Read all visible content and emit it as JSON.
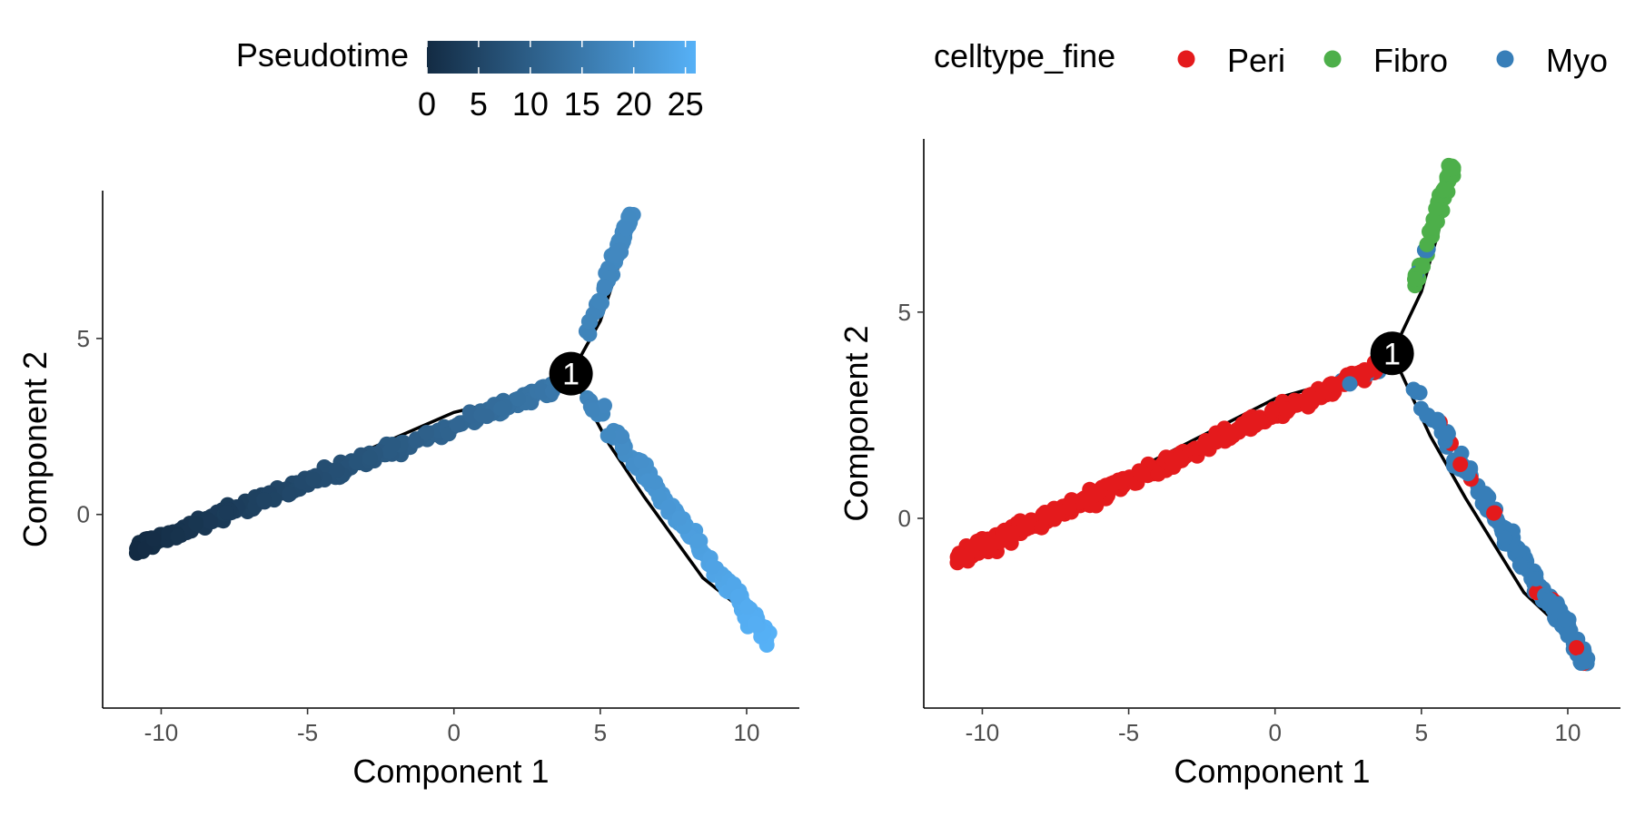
{
  "chart_data": [
    {
      "type": "scatter",
      "title": "",
      "xlabel": "Component 1",
      "ylabel": "Component 2",
      "xlim": [
        -12.0,
        11.8
      ],
      "ylim": [
        -5.5,
        9.2
      ],
      "xticks": [
        -10,
        -5,
        0,
        5,
        10
      ],
      "yticks": [
        0,
        5
      ],
      "xtick_labels": [
        "-10",
        "-5",
        "0",
        "5",
        "10"
      ],
      "ytick_labels": [
        "0",
        "5"
      ],
      "grid": false,
      "color_by": "Pseudotime",
      "legend": {
        "title": "Pseudotime",
        "kind": "colorbar",
        "position": "top",
        "range": [
          0,
          26
        ],
        "tick_values": [
          0,
          5,
          10,
          15,
          20,
          25
        ],
        "tick_labels": [
          "0",
          "5",
          "10",
          "15",
          "20",
          "25"
        ],
        "color_low": "#132b43",
        "color_high": "#56b1f7"
      },
      "trajectory": {
        "branch_node": {
          "label": "1",
          "x": 4.0,
          "y": 4.0
        },
        "segments": [
          [
            [
              -10.7,
              -0.9
            ],
            [
              -5.0,
              1.1
            ],
            [
              0.0,
              2.9
            ],
            [
              2.5,
              3.4
            ],
            [
              4.0,
              4.0
            ]
          ],
          [
            [
              4.0,
              4.0
            ],
            [
              5.0,
              5.5
            ],
            [
              5.6,
              7.0
            ],
            [
              6.0,
              8.5
            ]
          ],
          [
            [
              4.0,
              4.0
            ],
            [
              5.3,
              2.0
            ],
            [
              6.5,
              0.5
            ],
            [
              8.5,
              -1.8
            ],
            [
              10.6,
              -3.2
            ]
          ]
        ]
      },
      "branches": {
        "main_stem": {
          "from": [
            -10.8,
            -0.95
          ],
          "to": [
            3.6,
            3.7
          ],
          "pseudotime": [
            0.0,
            15.0
          ]
        },
        "upper_branch": {
          "from": [
            4.2,
            4.4
          ],
          "to": [
            6.1,
            8.6
          ],
          "pseudotime": [
            17.0,
            18.5
          ]
        },
        "lower_branch": {
          "from": [
            4.5,
            3.4
          ],
          "to": [
            10.7,
            -3.5
          ],
          "pseudotime": [
            17.0,
            26.0
          ]
        }
      }
    },
    {
      "type": "scatter",
      "title": "",
      "xlabel": "Component 1",
      "ylabel": "Component 2",
      "xlim": [
        -12.0,
        11.8
      ],
      "ylim": [
        -4.6,
        9.2
      ],
      "xticks": [
        -10,
        -5,
        0,
        5,
        10
      ],
      "yticks": [
        0,
        5
      ],
      "xtick_labels": [
        "-10",
        "-5",
        "0",
        "5",
        "10"
      ],
      "ytick_labels": [
        "0",
        "5"
      ],
      "grid": false,
      "color_by": "celltype_fine",
      "legend": {
        "title": "celltype_fine",
        "kind": "categorical",
        "position": "top",
        "entries": [
          {
            "label": "Peri",
            "color": "#e41a1c"
          },
          {
            "label": "Fibro",
            "color": "#4daf4a"
          },
          {
            "label": "Myo",
            "color": "#377eb8"
          }
        ]
      },
      "trajectory": {
        "branch_node": {
          "label": "1",
          "x": 4.0,
          "y": 4.0
        },
        "segments": [
          [
            [
              -10.7,
              -0.9
            ],
            [
              -5.0,
              1.1
            ],
            [
              0.0,
              2.9
            ],
            [
              2.5,
              3.4
            ],
            [
              4.0,
              4.0
            ]
          ],
          [
            [
              4.0,
              4.0
            ],
            [
              5.0,
              5.5
            ],
            [
              5.6,
              7.0
            ],
            [
              6.0,
              8.5
            ]
          ],
          [
            [
              4.0,
              4.0
            ],
            [
              5.3,
              2.0
            ],
            [
              6.5,
              0.5
            ],
            [
              8.5,
              -1.8
            ],
            [
              10.6,
              -3.2
            ]
          ]
        ]
      },
      "branches": {
        "main_stem": {
          "from": [
            -10.8,
            -0.95
          ],
          "to": [
            3.6,
            3.7
          ],
          "dominant": "Peri"
        },
        "upper_branch": {
          "from": [
            4.2,
            4.4
          ],
          "to": [
            6.1,
            8.6
          ],
          "dominant": "Fibro"
        },
        "lower_branch": {
          "from": [
            4.5,
            3.4
          ],
          "to": [
            10.7,
            -3.5
          ],
          "dominant": "Myo"
        }
      }
    }
  ]
}
